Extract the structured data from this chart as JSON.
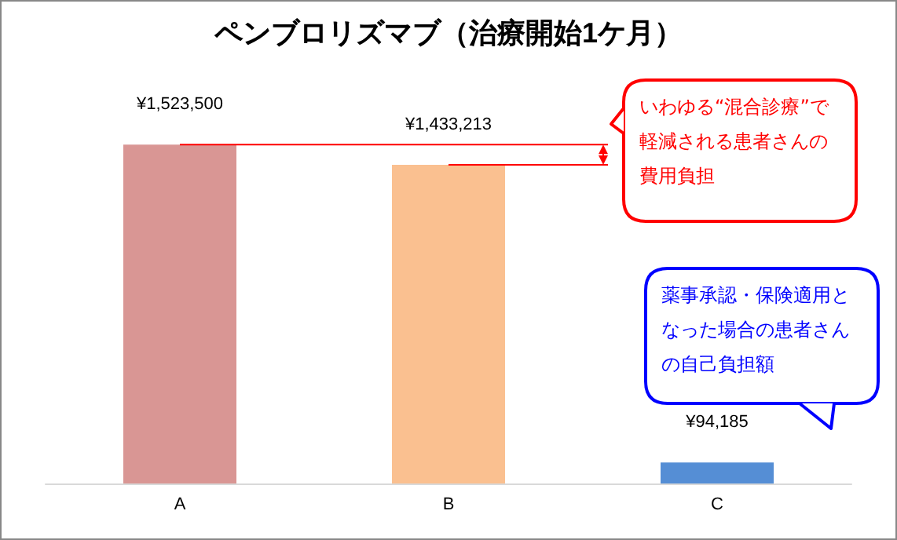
{
  "chart_data": {
    "type": "bar",
    "title": "ペンブロリズマブ（治療開始1ケ月）",
    "categories": [
      "A",
      "B",
      "C"
    ],
    "values": [
      1523500,
      1433213,
      94185
    ],
    "colors": [
      "#d99694",
      "#fac090",
      "#558ed5"
    ],
    "value_labels": [
      "¥1,523,500",
      "¥1,433,213",
      "¥94,185"
    ],
    "ref_lines": [
      {
        "axis": "y",
        "value": 1523500,
        "color": "#ff0000"
      },
      {
        "axis": "y",
        "value": 1433213,
        "color": "#ff0000"
      }
    ],
    "annotations": [
      "いわゆる“混合診療”で軽減される患者さんの費用負担",
      "薬事承認・保険適用となった場合の患者さんの自己負担額"
    ]
  }
}
